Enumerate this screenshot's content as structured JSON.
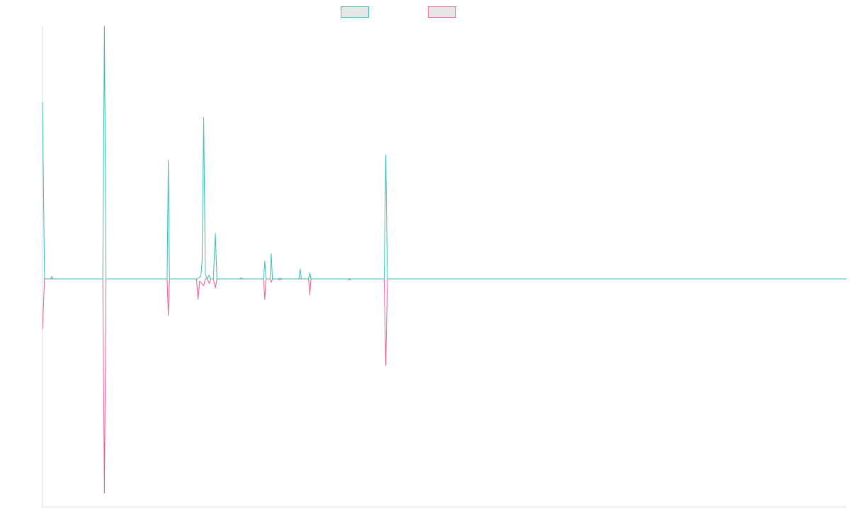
{
  "chart_data": {
    "type": "line",
    "title": "",
    "xlabel": "",
    "ylabel": "",
    "grid": false,
    "legend_position": "top-center",
    "xlim": [
      0,
      200
    ],
    "ylim": [
      -1.0,
      1.0
    ],
    "series": [
      {
        "color": "#3dbdb4",
        "points": [
          [
            0,
            0.7
          ],
          [
            0.5,
            0.0
          ],
          [
            2,
            0.0
          ],
          [
            2.3,
            0.01
          ],
          [
            2.6,
            0.0
          ],
          [
            15,
            0.0
          ],
          [
            15.4,
            1.0
          ],
          [
            15.8,
            0.0
          ],
          [
            31,
            0.0
          ],
          [
            31.3,
            0.47
          ],
          [
            31.6,
            0.0
          ],
          [
            38.5,
            0.0
          ],
          [
            39.4,
            0.01
          ],
          [
            39.7,
            0.07
          ],
          [
            40.1,
            0.64
          ],
          [
            40.5,
            0.02
          ],
          [
            41,
            0.0
          ],
          [
            41.4,
            0.015
          ],
          [
            41.8,
            0.0
          ],
          [
            42.5,
            0.0
          ],
          [
            43,
            0.18
          ],
          [
            43.4,
            0.0
          ],
          [
            49,
            0.0
          ],
          [
            49.4,
            0.005
          ],
          [
            49.8,
            0.0
          ],
          [
            55,
            0.0
          ],
          [
            55.3,
            0.07
          ],
          [
            55.6,
            0.0
          ],
          [
            56.6,
            0.0
          ],
          [
            56.9,
            0.1
          ],
          [
            57.2,
            0.0
          ],
          [
            58.5,
            0.0
          ],
          [
            59,
            0.003
          ],
          [
            59.5,
            0.0
          ],
          [
            63.8,
            0.0
          ],
          [
            64.1,
            0.04
          ],
          [
            64.4,
            0.0
          ],
          [
            66.2,
            0.0
          ],
          [
            66.5,
            0.025
          ],
          [
            66.8,
            0.0
          ],
          [
            85,
            0.0
          ],
          [
            85.4,
            0.49
          ],
          [
            85.8,
            0.0
          ],
          [
            200,
            0.0
          ]
        ]
      },
      {
        "color": "#ee5f8a",
        "points": [
          [
            0,
            -0.22
          ],
          [
            0.5,
            0.0
          ],
          [
            15,
            0.0
          ],
          [
            15.4,
            -0.94
          ],
          [
            15.8,
            0.0
          ],
          [
            31,
            0.0
          ],
          [
            31.3,
            -0.16
          ],
          [
            31.6,
            0.0
          ],
          [
            38.3,
            0.0
          ],
          [
            38.7,
            -0.09
          ],
          [
            39.1,
            -0.01
          ],
          [
            40.1,
            -0.03
          ],
          [
            40.5,
            0.0
          ],
          [
            41,
            0.0
          ],
          [
            41.5,
            -0.02
          ],
          [
            41.9,
            0.0
          ],
          [
            42.5,
            0.0
          ],
          [
            43,
            -0.04
          ],
          [
            43.4,
            0.0
          ],
          [
            55,
            0.0
          ],
          [
            55.3,
            -0.09
          ],
          [
            55.6,
            0.0
          ],
          [
            56.6,
            0.0
          ],
          [
            56.9,
            -0.015
          ],
          [
            57.2,
            0.0
          ],
          [
            58.5,
            0.0
          ],
          [
            59,
            -0.003
          ],
          [
            59.5,
            0.0
          ],
          [
            66.2,
            0.0
          ],
          [
            66.5,
            -0.07
          ],
          [
            66.8,
            0.0
          ],
          [
            76,
            0.0
          ],
          [
            76.4,
            -0.004
          ],
          [
            76.8,
            0.0
          ],
          [
            85,
            0.0
          ],
          [
            85.4,
            -0.38
          ],
          [
            85.8,
            0.0
          ],
          [
            200,
            0.0
          ]
        ]
      }
    ]
  }
}
